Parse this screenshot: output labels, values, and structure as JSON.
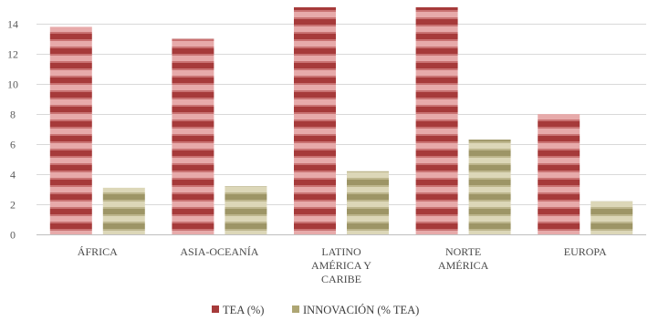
{
  "chart_data": {
    "type": "bar",
    "categories": [
      [
        "ÁFRICA"
      ],
      [
        "ASIA-OCEANÍA"
      ],
      [
        "LATINO",
        "AMÉRICA Y",
        "CARIBE"
      ],
      [
        "NORTE",
        "AMÉRICA"
      ],
      [
        "EUROPA"
      ]
    ],
    "series": [
      {
        "name": "TEA (%)",
        "values": [
          13.8,
          13.0,
          15.1,
          15.1,
          8.0
        ]
      },
      {
        "name": "INNOVACIÓN (% TEA)",
        "values": [
          3.1,
          3.2,
          4.2,
          6.3,
          2.2
        ]
      }
    ],
    "yticks": [
      0,
      2,
      4,
      6,
      8,
      10,
      12,
      14
    ],
    "ylim": [
      0,
      15.1
    ],
    "grid": true,
    "legend_position": "bottom-center",
    "colors": {
      "series1_light": "#e0a0a0",
      "series1_dark": "#a63a3a",
      "series2_light": "#d6d1b0",
      "series2_dark": "#9d9566"
    }
  }
}
